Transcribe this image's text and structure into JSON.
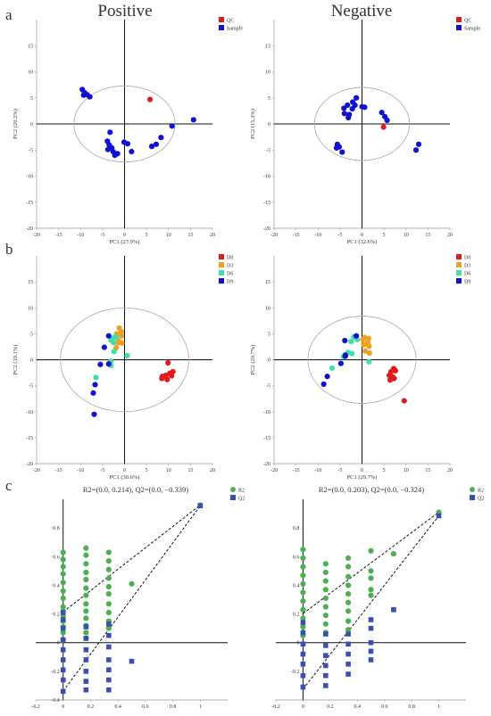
{
  "panel_letters": [
    "a",
    "b",
    "c"
  ],
  "column_titles": [
    "Positive",
    "Negative"
  ],
  "chart_data": [
    {
      "id": "a-pos",
      "type": "scatter",
      "panel": "a",
      "title": "",
      "xlabel": "PC1 (27.9%)",
      "ylabel": "PC2 (20.2%)",
      "xlim": [
        -20,
        20
      ],
      "ylim": [
        -20,
        20
      ],
      "xticks": [
        -20,
        -15,
        -10,
        -5,
        0,
        5,
        10,
        15,
        20
      ],
      "yticks": [
        -20,
        -15,
        -10,
        -5,
        0,
        5,
        10,
        15
      ],
      "ellipse": {
        "cx": 0,
        "cy": 0,
        "rx": 11.5,
        "ry": 7.3
      },
      "legend": {
        "position": "top-right",
        "entries": [
          {
            "name": "QC",
            "color": "#e31a1c"
          },
          {
            "name": "Sample",
            "color": "#1010d0"
          }
        ]
      },
      "series": [
        {
          "name": "QC",
          "color": "#e31a1c",
          "points": [
            [
              5.8,
              4.7
            ]
          ]
        },
        {
          "name": "Sample",
          "color": "#1010d0",
          "points": [
            [
              -9.6,
              6.6
            ],
            [
              -9.1,
              6.0
            ],
            [
              -8.5,
              5.6
            ],
            [
              -9.3,
              5.5
            ],
            [
              -7.9,
              5.2
            ],
            [
              -3.3,
              -1.6
            ],
            [
              -3.9,
              -3.3
            ],
            [
              -3.5,
              -4.0
            ],
            [
              -2.9,
              -4.6
            ],
            [
              -3.8,
              -4.9
            ],
            [
              -2.6,
              -5.3
            ],
            [
              -2.2,
              -6.0
            ],
            [
              -1.6,
              -5.7
            ],
            [
              -0.1,
              -3.5
            ],
            [
              0.7,
              -3.8
            ],
            [
              1.6,
              -5.3
            ],
            [
              6.2,
              -4.3
            ],
            [
              7.2,
              -3.9
            ],
            [
              8.3,
              -2.6
            ],
            [
              10.8,
              -0.4
            ],
            [
              15.7,
              0.8
            ]
          ]
        }
      ]
    },
    {
      "id": "a-neg",
      "type": "scatter",
      "panel": "a",
      "title": "",
      "xlabel": "PC1 (32.6%)",
      "ylabel": "PC2 (15.3%)",
      "xlim": [
        -20,
        20
      ],
      "ylim": [
        -20,
        20
      ],
      "xticks": [
        -20,
        -15,
        -10,
        -5,
        0,
        5,
        10,
        15,
        20
      ],
      "yticks": [
        -20,
        -15,
        -10,
        -5,
        0,
        5,
        10,
        15
      ],
      "ellipse": {
        "cx": 0,
        "cy": 0,
        "rx": 10.8,
        "ry": 7.0
      },
      "legend": {
        "position": "top-right",
        "entries": [
          {
            "name": "QC",
            "color": "#e31a1c"
          },
          {
            "name": "Sample",
            "color": "#1010d0"
          }
        ]
      },
      "series": [
        {
          "name": "QC",
          "color": "#e31a1c",
          "points": [
            [
              4.9,
              -0.6
            ]
          ]
        },
        {
          "name": "Sample",
          "color": "#1010d0",
          "points": [
            [
              -1.3,
              5.0
            ],
            [
              -2.1,
              4.2
            ],
            [
              -3.3,
              3.6
            ],
            [
              -4.1,
              3.0
            ],
            [
              -2.2,
              2.9
            ],
            [
              -4.0,
              2.0
            ],
            [
              -2.9,
              1.8
            ],
            [
              -3.1,
              1.2
            ],
            [
              -1.6,
              3.6
            ],
            [
              0.0,
              3.3
            ],
            [
              0.6,
              3.2
            ],
            [
              4.5,
              2.2
            ],
            [
              5.2,
              1.4
            ],
            [
              5.7,
              0.7
            ],
            [
              -5.6,
              -3.9
            ],
            [
              -5.2,
              -4.4
            ],
            [
              -5.8,
              -4.6
            ],
            [
              -4.5,
              -5.4
            ],
            [
              12.9,
              -3.9
            ],
            [
              12.3,
              -5.0
            ]
          ]
        }
      ]
    },
    {
      "id": "b-pos",
      "type": "scatter",
      "panel": "b",
      "title": "",
      "xlabel": "PC1 (30.6%)",
      "ylabel": "PC2 (19.1%)",
      "xlim": [
        -20,
        20
      ],
      "ylim": [
        -20,
        20
      ],
      "xticks": [
        -20,
        -15,
        -10,
        -5,
        0,
        5,
        10,
        15,
        20
      ],
      "yticks": [
        -20,
        -15,
        -10,
        -5,
        0,
        5,
        10,
        15
      ],
      "ellipse": {
        "cx": 0,
        "cy": 0,
        "rx": 14.6,
        "ry": 10.0
      },
      "legend": {
        "position": "top-right",
        "entries": [
          {
            "name": "D0",
            "color": "#e31a1c"
          },
          {
            "name": "D3",
            "color": "#f0a020"
          },
          {
            "name": "D6",
            "color": "#3ce0a8"
          },
          {
            "name": "D9",
            "color": "#1010d0"
          }
        ]
      },
      "series": [
        {
          "name": "D0",
          "color": "#e31a1c",
          "points": [
            [
              9.9,
              -0.6
            ],
            [
              11.0,
              -2.3
            ],
            [
              10.3,
              -2.6
            ],
            [
              10.7,
              -3.1
            ],
            [
              9.4,
              -3.0
            ],
            [
              8.6,
              -3.2
            ],
            [
              9.7,
              -3.8
            ],
            [
              8.5,
              -3.6
            ]
          ]
        },
        {
          "name": "D3",
          "color": "#f0a020",
          "points": [
            [
              -1.2,
              6.1
            ],
            [
              -0.7,
              5.4
            ],
            [
              -1.8,
              5.0
            ],
            [
              -0.7,
              4.6
            ],
            [
              -1.4,
              3.7
            ],
            [
              -0.6,
              3.2
            ],
            [
              -1.9,
              2.3
            ],
            [
              -1.5,
              3.3
            ]
          ]
        },
        {
          "name": "D6",
          "color": "#3ce0a8",
          "points": [
            [
              -2.4,
              4.3
            ],
            [
              -3.1,
              3.8
            ],
            [
              -2.5,
              3.3
            ],
            [
              -1.9,
              4.4
            ],
            [
              -2.4,
              1.6
            ],
            [
              0.6,
              0.8
            ],
            [
              -3.1,
              -0.3
            ],
            [
              -3.1,
              -1.1
            ],
            [
              -6.5,
              -3.4
            ]
          ]
        },
        {
          "name": "D9",
          "color": "#1010d0",
          "points": [
            [
              -3.6,
              4.6
            ],
            [
              -4.6,
              2.4
            ],
            [
              -3.6,
              -0.8
            ],
            [
              -5.5,
              -0.9
            ],
            [
              -6.7,
              -4.8
            ],
            [
              -7.1,
              -6.4
            ],
            [
              -6.9,
              -10.5
            ]
          ]
        }
      ]
    },
    {
      "id": "b-neg",
      "type": "scatter",
      "panel": "b",
      "title": "",
      "xlabel": "PC1 (29.7%)",
      "ylabel": "PC2 (20.7%)",
      "xlim": [
        -20,
        20
      ],
      "ylim": [
        -20,
        20
      ],
      "xticks": [
        -20,
        -15,
        -10,
        -5,
        0,
        5,
        10,
        15,
        20
      ],
      "yticks": [
        -20,
        -15,
        -10,
        -5,
        0,
        5,
        10,
        15
      ],
      "ellipse": {
        "cx": 0,
        "cy": 0,
        "rx": 12.3,
        "ry": 8.4
      },
      "legend": {
        "position": "top-right",
        "entries": [
          {
            "name": "D0",
            "color": "#e31a1c"
          },
          {
            "name": "D3",
            "color": "#f0a020"
          },
          {
            "name": "D6",
            "color": "#3ce0a8"
          },
          {
            "name": "D9",
            "color": "#1010d0"
          }
        ]
      },
      "series": [
        {
          "name": "D0",
          "color": "#e31a1c",
          "points": [
            [
              7.2,
              -1.7
            ],
            [
              6.6,
              -2.3
            ],
            [
              7.6,
              -2.1
            ],
            [
              6.2,
              -3.0
            ],
            [
              7.0,
              -3.3
            ],
            [
              6.4,
              -3.9
            ],
            [
              7.3,
              -3.6
            ],
            [
              9.6,
              -7.9
            ]
          ]
        },
        {
          "name": "D3",
          "color": "#f0a020",
          "points": [
            [
              0.6,
              4.3
            ],
            [
              1.5,
              4.1
            ],
            [
              0.2,
              3.9
            ],
            [
              1.3,
              3.3
            ],
            [
              0.4,
              2.9
            ],
            [
              1.6,
              2.6
            ],
            [
              0.7,
              1.7
            ],
            [
              1.7,
              1.3
            ]
          ]
        },
        {
          "name": "D6",
          "color": "#3ce0a8",
          "points": [
            [
              -1.9,
              4.4
            ],
            [
              -1.1,
              3.9
            ],
            [
              -2.5,
              3.5
            ],
            [
              -2.3,
              1.2
            ],
            [
              -3.2,
              1.4
            ],
            [
              -4.2,
              0.6
            ],
            [
              -6.8,
              -1.6
            ],
            [
              1.6,
              -0.4
            ]
          ]
        },
        {
          "name": "D9",
          "color": "#1010d0",
          "points": [
            [
              -1.3,
              4.6
            ],
            [
              -3.9,
              3.7
            ],
            [
              -3.8,
              0.7
            ],
            [
              -4.8,
              -0.7
            ],
            [
              -3.8,
              0.9
            ],
            [
              -7.9,
              -3.2
            ],
            [
              -8.7,
              -4.7
            ]
          ]
        }
      ]
    },
    {
      "id": "c-pos",
      "type": "scatter",
      "panel": "c",
      "title": "R2=(0.0, 0.214), Q2=(0.0, −0.339)",
      "xlabel": "",
      "ylabel": "",
      "xlim": [
        -0.2,
        1.2
      ],
      "ylim": [
        -0.4,
        1.0
      ],
      "xticks": [
        -0.2,
        0,
        0.2,
        0.4,
        0.6,
        0.8,
        1
      ],
      "yticks": [
        -0.4,
        -0.2,
        0,
        0.2,
        0.4,
        0.6,
        0.8
      ],
      "legend": {
        "position": "top-right",
        "entries": [
          {
            "name": "R2",
            "color": "#4caf50"
          },
          {
            "name": "Q2",
            "color": "#3b4fb0"
          }
        ]
      },
      "fit_lines": [
        {
          "from": [
            0,
            0.214
          ],
          "to": [
            1,
            0.96
          ]
        },
        {
          "from": [
            0,
            -0.339
          ],
          "to": [
            1,
            0.955
          ]
        }
      ],
      "columns": [
        {
          "x": 0,
          "r2": [
            0.63,
            0.58,
            0.53,
            0.48,
            0.42,
            0.36,
            0.31,
            0.25,
            0.22,
            0.19,
            0.15,
            0.11,
            0.07,
            0.02
          ],
          "q2": [
            0.21,
            0.16,
            0.1,
            0.02,
            -0.05,
            -0.12,
            -0.19,
            -0.26,
            -0.34
          ]
        },
        {
          "x": 0.167,
          "r2": [
            0.66,
            0.61,
            0.55,
            0.49,
            0.44,
            0.38,
            0.33,
            0.27,
            0.22,
            0.17,
            0.12,
            0.07,
            0.03
          ],
          "q2": [
            0.11,
            0.03,
            -0.05,
            -0.12,
            -0.2,
            -0.27,
            -0.33
          ]
        },
        {
          "x": 0.333,
          "r2": [
            0.63,
            0.57,
            0.51,
            0.45,
            0.39,
            0.34,
            0.27,
            0.21,
            0.15,
            0.1
          ],
          "q2": [
            0.13,
            0.05,
            -0.03,
            -0.12,
            -0.19,
            -0.26,
            -0.33
          ]
        },
        {
          "x": 0.5,
          "r2": [
            0.41
          ],
          "q2": [
            -0.13
          ]
        },
        {
          "x": 1,
          "r2": [
            0.96
          ],
          "q2": [
            0.955
          ]
        }
      ]
    },
    {
      "id": "c-neg",
      "type": "scatter",
      "panel": "c",
      "title": "R2=(0.0, 0.203), Q2=(0.0, −0.324)",
      "xlabel": "",
      "ylabel": "",
      "xlim": [
        -0.2,
        1.2
      ],
      "ylim": [
        -0.4,
        1.0
      ],
      "xticks": [
        -0.2,
        0,
        0.2,
        0.4,
        0.6,
        0.8,
        1
      ],
      "yticks": [
        -0.2,
        0,
        0.2,
        0.4,
        0.6,
        0.8
      ],
      "legend": {
        "position": "top-right",
        "entries": [
          {
            "name": "R2",
            "color": "#4caf50"
          },
          {
            "name": "Q2",
            "color": "#3b4fb0"
          }
        ]
      },
      "fit_lines": [
        {
          "from": [
            0,
            0.203
          ],
          "to": [
            1,
            0.91
          ]
        },
        {
          "from": [
            0,
            -0.324
          ],
          "to": [
            1,
            0.885
          ]
        }
      ],
      "columns": [
        {
          "x": 0,
          "r2": [
            0.65,
            0.59,
            0.53,
            0.47,
            0.41,
            0.35,
            0.29,
            0.23,
            0.17,
            0.11,
            0.05
          ],
          "q2": [
            0.14,
            0.07,
            -0.01,
            -0.08,
            -0.15,
            -0.23,
            -0.31
          ]
        },
        {
          "x": 0.167,
          "r2": [
            0.55,
            0.49,
            0.43,
            0.37,
            0.31,
            0.25,
            0.19,
            0.13,
            0.07
          ],
          "q2": [
            0.06,
            -0.02,
            -0.09,
            -0.16,
            -0.23,
            -0.3
          ]
        },
        {
          "x": 0.333,
          "r2": [
            0.59,
            0.53,
            0.46,
            0.4,
            0.34,
            0.28,
            0.22,
            0.15,
            0.09
          ],
          "q2": [
            0.06,
            -0.01,
            -0.08,
            -0.15,
            -0.22
          ]
        },
        {
          "x": 0.5,
          "r2": [
            0.64,
            0.5,
            0.45,
            0.37,
            0.33
          ],
          "q2": [
            0.16,
            0.1,
            0.0,
            -0.06,
            -0.12
          ]
        },
        {
          "x": 0.667,
          "r2": [
            0.62
          ],
          "q2": [
            0.23
          ]
        },
        {
          "x": 1,
          "r2": [
            0.91
          ],
          "q2": [
            0.885
          ]
        }
      ]
    }
  ]
}
